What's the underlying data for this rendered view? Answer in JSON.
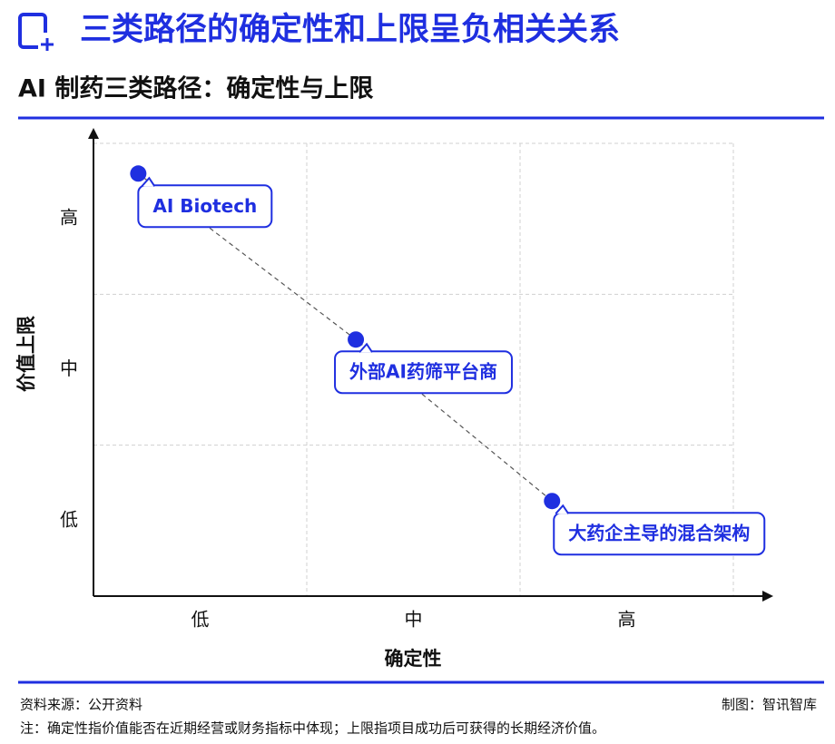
{
  "header": {
    "title": "三类路径的确定性和上限呈负相关关系",
    "subtitle": "AI 制药三类路径：确定性与上限"
  },
  "chart_data": {
    "type": "scatter",
    "x_label": "确定性",
    "y_label": "价值上限",
    "xlim": [
      0,
      3
    ],
    "ylim": [
      0,
      3
    ],
    "xticks": [
      {
        "value": 0.5,
        "label": "低"
      },
      {
        "value": 1.5,
        "label": "中"
      },
      {
        "value": 2.5,
        "label": "高"
      }
    ],
    "yticks": [
      {
        "value": 0.5,
        "label": "低"
      },
      {
        "value": 1.5,
        "label": "中"
      },
      {
        "value": 2.5,
        "label": "高"
      }
    ],
    "grid": true,
    "trend_line": true,
    "color": "#1f2fe0",
    "labels": [
      "AI Biotech",
      "外部AI药筛平台商",
      "大药企主导的混合架构"
    ],
    "x": [
      0.21,
      1.23,
      2.15
    ],
    "y": [
      2.8,
      1.7,
      0.63
    ]
  },
  "footer": {
    "source": "资料来源：公开资料",
    "credit": "制图：智讯智库",
    "note": "注：确定性指价值能否在近期经营或财务指标中体现；上限指项目成功后可获得的长期经济价值。"
  }
}
